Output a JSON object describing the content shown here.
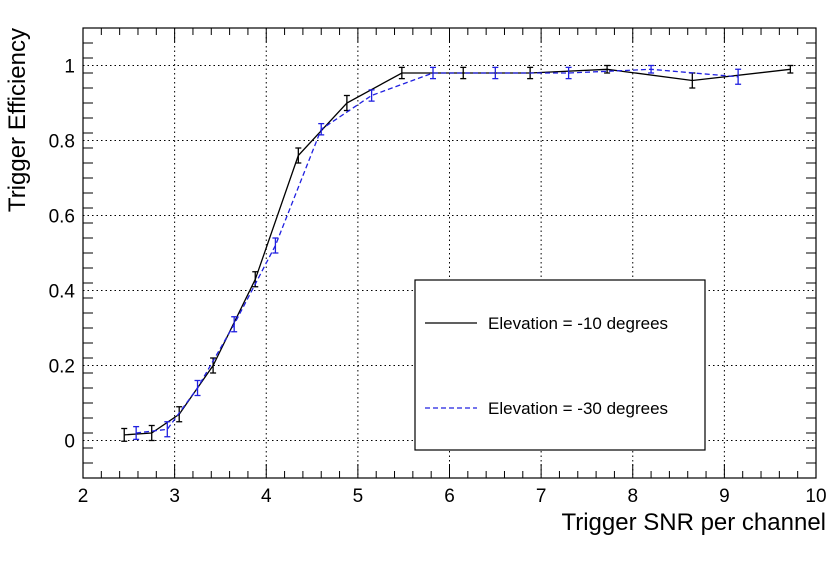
{
  "chart_data": {
    "type": "line",
    "title": "",
    "xlabel": "Trigger SNR per channel",
    "ylabel": "Trigger Efficiency",
    "xlim": [
      2,
      10
    ],
    "ylim": [
      -0.1,
      1.1
    ],
    "x_ticks": [
      2,
      3,
      4,
      5,
      6,
      7,
      8,
      9,
      10
    ],
    "y_ticks": [
      0,
      0.2,
      0.4,
      0.6,
      0.8,
      1
    ],
    "x_tick_labels": [
      "2",
      "3",
      "4",
      "5",
      "6",
      "7",
      "8",
      "9",
      "10"
    ],
    "y_tick_labels": [
      "0",
      "0.2",
      "0.4",
      "0.6",
      "0.8",
      "1"
    ],
    "grid": true,
    "legend_position": "bottom-right",
    "series": [
      {
        "name": "Elevation = -10 degrees",
        "color": "#000000",
        "style": "solid",
        "points": [
          {
            "x": 2.45,
            "y": 0.015,
            "err": 0.017
          },
          {
            "x": 2.75,
            "y": 0.02,
            "err": 0.02
          },
          {
            "x": 3.05,
            "y": 0.07,
            "err": 0.02
          },
          {
            "x": 3.42,
            "y": 0.2,
            "err": 0.02
          },
          {
            "x": 3.88,
            "y": 0.43,
            "err": 0.02
          },
          {
            "x": 4.35,
            "y": 0.76,
            "err": 0.02
          },
          {
            "x": 4.88,
            "y": 0.9,
            "err": 0.02
          },
          {
            "x": 5.48,
            "y": 0.98,
            "err": 0.015
          },
          {
            "x": 6.15,
            "y": 0.98,
            "err": 0.015
          },
          {
            "x": 6.88,
            "y": 0.98,
            "err": 0.015
          },
          {
            "x": 7.72,
            "y": 0.99,
            "err": 0.01
          },
          {
            "x": 8.65,
            "y": 0.96,
            "err": 0.02
          },
          {
            "x": 9.72,
            "y": 0.99,
            "err": 0.01
          }
        ]
      },
      {
        "name": "Elevation = -30 degrees",
        "color": "#2020e0",
        "style": "dashed",
        "points": [
          {
            "x": 2.58,
            "y": 0.02,
            "err": 0.017
          },
          {
            "x": 2.92,
            "y": 0.03,
            "err": 0.02
          },
          {
            "x": 3.25,
            "y": 0.14,
            "err": 0.02
          },
          {
            "x": 3.65,
            "y": 0.31,
            "err": 0.02
          },
          {
            "x": 4.1,
            "y": 0.52,
            "err": 0.02
          },
          {
            "x": 4.6,
            "y": 0.83,
            "err": 0.015
          },
          {
            "x": 5.15,
            "y": 0.92,
            "err": 0.015
          },
          {
            "x": 5.82,
            "y": 0.98,
            "err": 0.015
          },
          {
            "x": 6.5,
            "y": 0.98,
            "err": 0.015
          },
          {
            "x": 7.3,
            "y": 0.98,
            "err": 0.015
          },
          {
            "x": 8.2,
            "y": 0.99,
            "err": 0.01
          },
          {
            "x": 9.15,
            "y": 0.97,
            "err": 0.02
          }
        ]
      }
    ]
  }
}
